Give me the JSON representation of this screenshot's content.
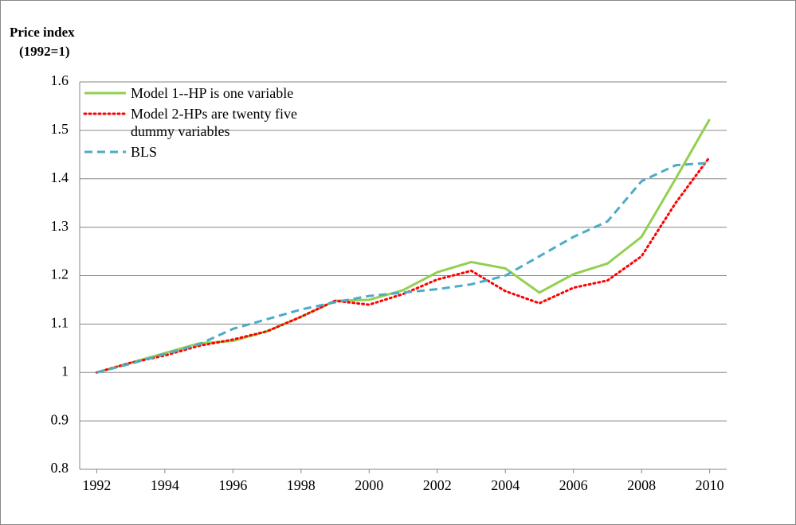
{
  "chart_data": {
    "type": "line",
    "ylabel": [
      "Price index",
      "(1992=1)"
    ],
    "x": [
      1992,
      1993,
      1994,
      1995,
      1996,
      1997,
      1998,
      1999,
      2000,
      2001,
      2002,
      2003,
      2004,
      2005,
      2006,
      2007,
      2008,
      2009,
      2010
    ],
    "xlim": [
      1991.5,
      2010.5
    ],
    "xticks": [
      1992,
      1994,
      1996,
      1998,
      2000,
      2002,
      2004,
      2006,
      2008,
      2010
    ],
    "ylim": [
      0.8,
      1.6
    ],
    "yticks": [
      0.8,
      0.9,
      1,
      1.1,
      1.2,
      1.3,
      1.4,
      1.5,
      1.6
    ],
    "grid": true,
    "legend": "upper left",
    "series": [
      {
        "name": "Model 1--HP is one variable",
        "color": "#92d050",
        "style": "solid",
        "values": [
          1.0,
          1.02,
          1.04,
          1.06,
          1.065,
          1.085,
          1.115,
          1.148,
          1.15,
          1.17,
          1.207,
          1.228,
          1.215,
          1.165,
          1.203,
          1.225,
          1.28,
          1.4,
          1.523
        ]
      },
      {
        "name": "Model 2-HPs are twenty five dummy variables",
        "color": "#ff0000",
        "style": "dotted",
        "values": [
          1.0,
          1.02,
          1.035,
          1.055,
          1.068,
          1.085,
          1.115,
          1.148,
          1.14,
          1.162,
          1.192,
          1.21,
          1.168,
          1.143,
          1.175,
          1.19,
          1.24,
          1.35,
          1.445
        ]
      },
      {
        "name": "BLS",
        "color": "#4bacc6",
        "style": "dashed",
        "values": [
          1.0,
          1.018,
          1.038,
          1.058,
          1.09,
          1.11,
          1.13,
          1.145,
          1.158,
          1.165,
          1.172,
          1.182,
          1.2,
          1.24,
          1.28,
          1.312,
          1.395,
          1.428,
          1.433
        ]
      }
    ]
  }
}
